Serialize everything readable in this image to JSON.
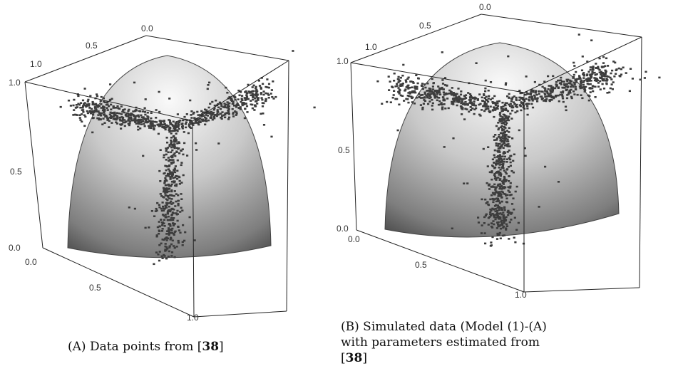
{
  "chart_data": [
    {
      "type": "scatter",
      "panel": "A",
      "caption_label": "(A)",
      "caption_text": "Data points from [",
      "caption_ref": "38",
      "caption_end": "]",
      "ticks": {
        "top_axis": [
          "0.0",
          "0.5",
          "1.0"
        ],
        "left_axis": [
          "1.0",
          "0.5",
          "0.0"
        ],
        "front_axis": [
          "0.0",
          "0.5",
          "1.0"
        ]
      },
      "surface": "unit-sphere-octant",
      "colors": {
        "points": "#3c3c3c",
        "edges": "#222222"
      },
      "shape": {
        "spread": 0.11,
        "drift_left": 0.1,
        "drift_right": 0.1,
        "drift_down": 0.12
      }
    },
    {
      "type": "scatter",
      "panel": "B",
      "caption_label": "(B)",
      "caption_text": "Simulated data (Model (1)-(A) with parameters estimated from [",
      "caption_ref": "38",
      "caption_end": "]",
      "ticks": {
        "top_axis": [
          "0.0",
          "0.5",
          "1.0"
        ],
        "left_axis": [
          "1.0",
          "0.5",
          "0.0"
        ],
        "front_axis": [
          "0.0",
          "0.5",
          "1.0"
        ]
      },
      "surface": "unit-sphere-octant",
      "colors": {
        "points": "#3c3c3c",
        "edges": "#222222"
      },
      "shape": {
        "spread": 0.13,
        "drift_left": 0.14,
        "drift_right": 0.14,
        "drift_down": 0.14
      }
    }
  ]
}
